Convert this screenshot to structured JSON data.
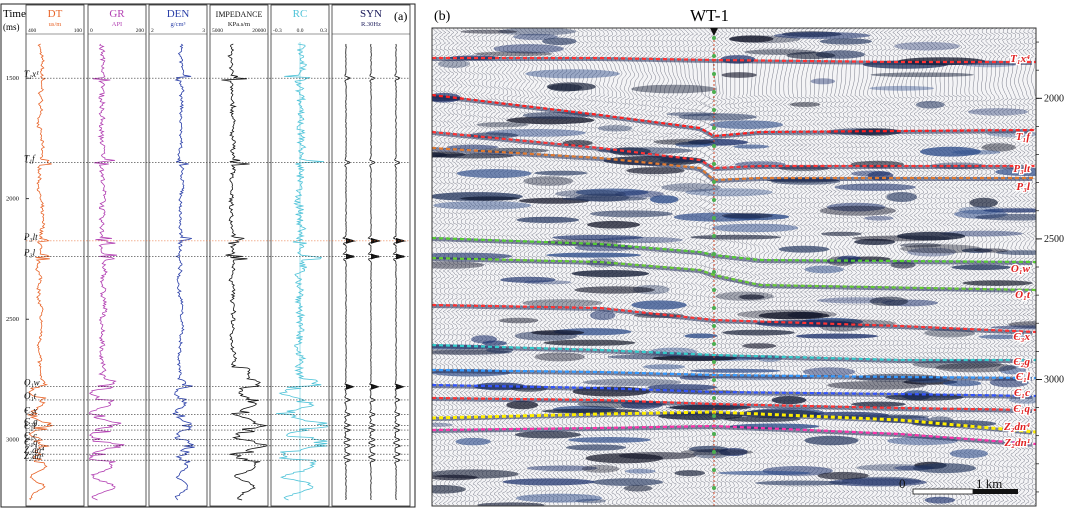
{
  "panel_a": {
    "label": "(a)",
    "time_label": "Time",
    "time_unit": "(ms)",
    "time_ticks": [
      "1500",
      "2000",
      "2500",
      "3000"
    ],
    "tracks": [
      {
        "key": "dt",
        "title": "DT",
        "unit": "us/m",
        "min": "400",
        "max": "100",
        "color": "#e8652a"
      },
      {
        "key": "gr",
        "title": "GR",
        "unit": "API",
        "min": "0",
        "max": "200",
        "color": "#b23fb2"
      },
      {
        "key": "den",
        "title": "DEN",
        "unit": "g/cm³",
        "min": "2",
        "max": "3",
        "color": "#2a3fa8"
      },
      {
        "key": "imp",
        "title": "IMPEDANCE",
        "unit": "KPa.s/m",
        "min": "5000",
        "max": "20000",
        "color": "#111111"
      },
      {
        "key": "rc",
        "title": "RC",
        "unit": "",
        "min": "-0.3",
        "max": "0.3",
        "mid": "0.0",
        "color": "#4fc3d8"
      },
      {
        "key": "syn",
        "title": "SYN",
        "unit": "R.30Hz",
        "min": "",
        "max": "",
        "color": "#1a1a5a"
      }
    ],
    "horizons": [
      {
        "label": "T₁x¹",
        "time": 1500,
        "highlight": false
      },
      {
        "label": "T₁f",
        "time": 1850,
        "highlight": false
      },
      {
        "label": "P₃lt",
        "time": 2175,
        "highlight": true
      },
      {
        "label": "P₃l",
        "time": 2240,
        "highlight": false
      },
      {
        "label": "O₁w",
        "time": 2780,
        "highlight": false
      },
      {
        "label": "O₁t",
        "time": 2835,
        "highlight": false
      },
      {
        "label": "Є₃x",
        "time": 2895,
        "highlight": false
      },
      {
        "label": "Є₂g",
        "time": 2940,
        "highlight": false
      },
      {
        "label": "Є₁l",
        "time": 2960,
        "highlight": false
      },
      {
        "label": "Є₁c",
        "time": 3000,
        "highlight": false
      },
      {
        "label": "Є₁q",
        "time": 3025,
        "highlight": false
      },
      {
        "label": "Z₂dn⁴",
        "time": 3060,
        "highlight": false
      },
      {
        "label": "Z₂dn¹",
        "time": 3085,
        "highlight": false
      }
    ]
  },
  "panel_b": {
    "label": "(b)",
    "well": "WT-1",
    "time_ticks": [
      "2000",
      "2500",
      "3000"
    ],
    "scale_zero": "0",
    "scale_km": "1 km",
    "horizons": [
      {
        "label": "T₁x⁴",
        "color": "#ff3333"
      },
      {
        "label": "T₁f",
        "color": "#ff2020"
      },
      {
        "label": "P₃lt",
        "color": "#ff3333"
      },
      {
        "label": "P₃l",
        "color": "#e07a30"
      },
      {
        "label": "O₁w",
        "color": "#55cc33"
      },
      {
        "label": "O₁t",
        "color": "#66cc33"
      },
      {
        "label": "Є₃x",
        "color": "#ff3333"
      },
      {
        "label": "Є₂g",
        "color": "#33cccc"
      },
      {
        "label": "Є₁l",
        "color": "#3399ff"
      },
      {
        "label": "Є₁c",
        "color": "#3355ff"
      },
      {
        "label": "Є₁q",
        "color": "#ff3333"
      },
      {
        "label": "Z₂dn⁴",
        "color": "#ffee00"
      },
      {
        "label": "Z₂dn¹",
        "color": "#ff33aa"
      }
    ]
  },
  "chart_data": [
    {
      "type": "line",
      "title": "",
      "ylabel": "Time (ms)",
      "ylim": [
        1350,
        3250
      ],
      "series": [
        {
          "name": "DT",
          "x_unit": "us/m",
          "xlim": [
            400,
            100
          ]
        },
        {
          "name": "GR",
          "x_unit": "API",
          "xlim": [
            0,
            200
          ]
        },
        {
          "name": "DEN",
          "x_unit": "g/cm³",
          "xlim": [
            2,
            3
          ]
        },
        {
          "name": "IMPEDANCE",
          "x_unit": "KPa.s/m",
          "xlim": [
            5000,
            20000
          ]
        },
        {
          "name": "RC",
          "xlim": [
            -0.3,
            0.3
          ]
        },
        {
          "name": "SYN",
          "x_unit": "R.30Hz"
        }
      ]
    },
    {
      "type": "heatmap",
      "title": "",
      "ylim": [
        1750,
        3450
      ],
      "y_ticks": [
        2000,
        2500,
        3000
      ]
    }
  ]
}
